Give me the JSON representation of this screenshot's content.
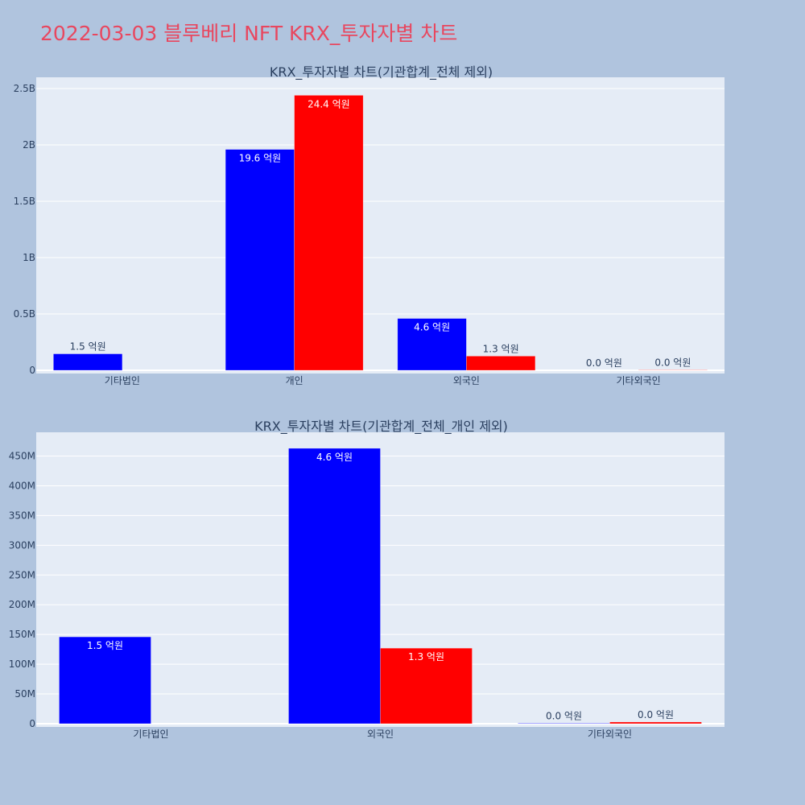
{
  "page": {
    "title": "2022-03-03 블루베리 NFT KRX_투자자별 차트",
    "background": "#b0c4de",
    "title_color": "#e8475f"
  },
  "colors": {
    "plot_bg": "#e5ecf6",
    "grid": "#ffffff",
    "text": "#2a3f5f",
    "series_a": "#0000ff",
    "series_b": "#ff0000"
  },
  "chart_data": [
    {
      "type": "bar",
      "title": "KRX_투자자별 차트(기관합계_전체 제외)",
      "categories": [
        "기타법인",
        "개인",
        "외국인",
        "기타외국인"
      ],
      "series": [
        {
          "color": "#0000ff",
          "values": [
            146000000,
            1960000000,
            460000000,
            800000
          ],
          "labels": [
            "1.5 억원",
            "19.6 억원",
            "4.6 억원",
            "0.0 억원"
          ]
        },
        {
          "color": "#ff0000",
          "values": [
            0,
            2440000000,
            126000000,
            2800000
          ],
          "labels": [
            "",
            "24.4 억원",
            "1.3 억원",
            "0.0 억원"
          ]
        }
      ],
      "ylim": [
        0,
        2600000000
      ],
      "yticks": [
        0,
        500000000,
        1000000000,
        1500000000,
        2000000000,
        2500000000
      ],
      "ytick_labels": [
        "0",
        "0.5B",
        "1B",
        "1.5B",
        "2B",
        "2.5B"
      ],
      "grid": true
    },
    {
      "type": "bar",
      "title": "KRX_투자자별 차트(기관합계_전체_개인 제외)",
      "categories": [
        "기타법인",
        "외국인",
        "기타외국인"
      ],
      "series": [
        {
          "color": "#0000ff",
          "values": [
            146000000,
            463000000,
            800000
          ],
          "labels": [
            "1.5 억원",
            "4.6 억원",
            "0.0 억원"
          ]
        },
        {
          "color": "#ff0000",
          "values": [
            0,
            127000000,
            2800000
          ],
          "labels": [
            "",
            "1.3 억원",
            "0.0 억원"
          ]
        }
      ],
      "ylim": [
        0,
        490000000
      ],
      "yticks": [
        0,
        50000000,
        100000000,
        150000000,
        200000000,
        250000000,
        300000000,
        350000000,
        400000000,
        450000000
      ],
      "ytick_labels": [
        "0",
        "50M",
        "100M",
        "150M",
        "200M",
        "250M",
        "300M",
        "350M",
        "400M",
        "450M"
      ],
      "grid": true
    }
  ]
}
